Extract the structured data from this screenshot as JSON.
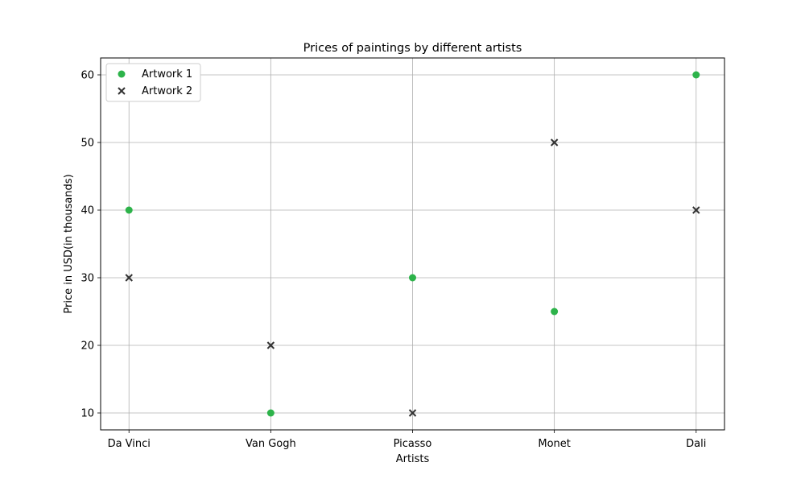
{
  "chart_data": {
    "type": "scatter",
    "title": "Prices of paintings by different artists",
    "xlabel": "Artists",
    "ylabel": "Price in USD(in thousands)",
    "categories": [
      "Da Vinci",
      "Van Gogh",
      "Picasso",
      "Monet",
      "Dali"
    ],
    "ylim": [
      7.5,
      62.5
    ],
    "yticks": [
      10,
      20,
      30,
      40,
      50,
      60
    ],
    "grid": true,
    "legend_position": "top-left",
    "series": [
      {
        "name": "Artwork 1",
        "marker": "circle",
        "color": "#2db34a",
        "values": [
          40,
          10,
          30,
          25,
          60
        ]
      },
      {
        "name": "Artwork 2",
        "marker": "x",
        "color": "#333333",
        "values": [
          30,
          20,
          10,
          50,
          40
        ]
      }
    ]
  }
}
